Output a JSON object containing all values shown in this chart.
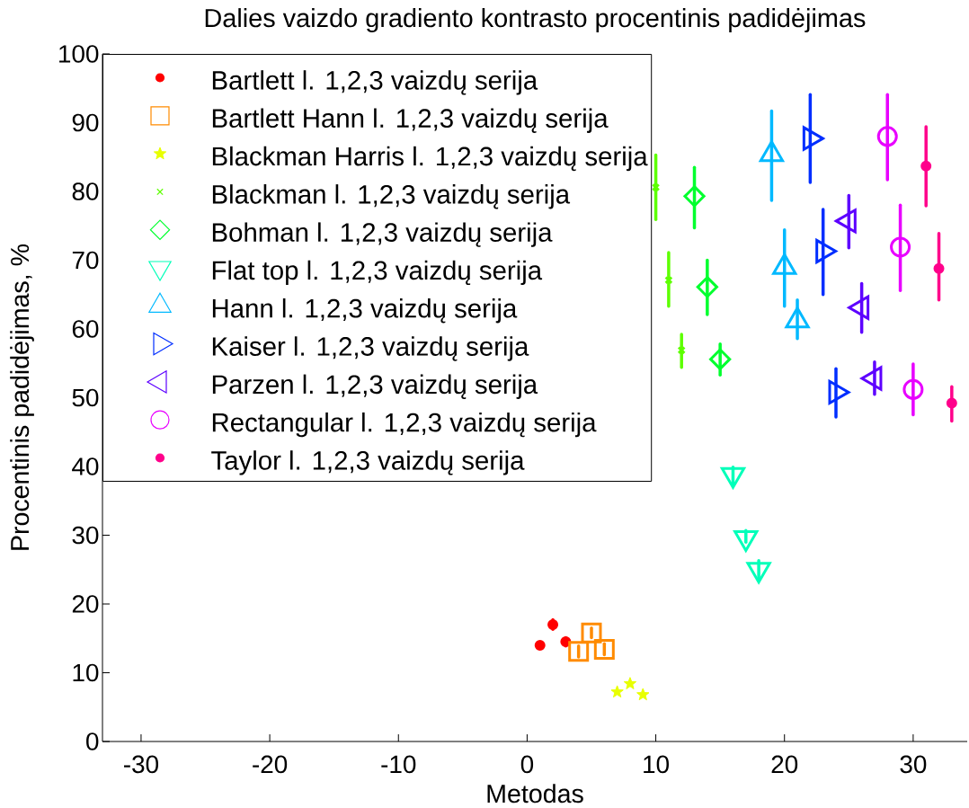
{
  "chart_data": {
    "type": "scatter",
    "title": "Dalies vaizdo gradiento kontrasto procentinis padidėjimas",
    "xlabel": "Metodas",
    "ylabel": "Procentinis padidėjimas, %",
    "xlim": [
      -33,
      34.2
    ],
    "ylim": [
      0,
      100
    ],
    "xticks": [
      -30,
      -20,
      -10,
      0,
      10,
      20,
      30
    ],
    "yticks": [
      0,
      10,
      20,
      30,
      40,
      50,
      60,
      70,
      80,
      90,
      100
    ],
    "legend": "top left",
    "series": [
      {
        "name": "Bartlett l. 1,2,3 vaizdų serija",
        "color": "#ff0000",
        "marker": "dot",
        "x": [
          1,
          2,
          3
        ],
        "values": [
          14.0,
          17.0,
          14.5
        ],
        "errors": [
          null,
          [
            16.3,
            17.7
          ],
          [
            13.9,
            15.1
          ]
        ]
      },
      {
        "name": "Bartlett Hann l. 1,2,3 vaizdų serija",
        "color": "#ff8b00",
        "marker": "square",
        "x": [
          4,
          5,
          6
        ],
        "values": [
          13.1,
          15.8,
          13.4
        ],
        "errors": [
          [
            12.3,
            13.9
          ],
          [
            15.1,
            16.5
          ],
          [
            12.6,
            14.2
          ]
        ]
      },
      {
        "name": "Blackman Harris l. 1,2,3 vaizdų serija",
        "color": "#e8ff00",
        "marker": "star",
        "x": [
          7,
          8,
          9
        ],
        "values": [
          7.2,
          8.4,
          6.8
        ]
      },
      {
        "name": "Blackman l. 1,2,3 vaizdų serija",
        "color": "#5dff00",
        "marker": "cross",
        "x": [
          10,
          11,
          12
        ],
        "values": [
          80.6,
          67.1,
          56.9
        ],
        "errors": [
          [
            75.9,
            85.3
          ],
          [
            63.3,
            71.1
          ],
          [
            54.4,
            59.2
          ]
        ]
      },
      {
        "name": "Bohman l. 1,2,3 vaizdų serija",
        "color": "#00ff2e",
        "marker": "diamond",
        "x": [
          13,
          14,
          15
        ],
        "values": [
          79.3,
          66.1,
          55.6
        ],
        "errors": [
          [
            74.7,
            83.5
          ],
          [
            62.1,
            70.0
          ],
          [
            53.3,
            57.8
          ]
        ]
      },
      {
        "name": "Flat top l. 1,2,3 vaizdų serija",
        "color": "#00ffb9",
        "marker": "triangle-down",
        "x": [
          16,
          17,
          18
        ],
        "values": [
          38.8,
          29.6,
          25.0
        ],
        "errors": [
          [
            37.5,
            39.9
          ],
          [
            29.0,
            30.7
          ],
          [
            23.7,
            26.3
          ]
        ]
      },
      {
        "name": "Hann l. 1,2,3 vaizdų serija",
        "color": "#00b9ff",
        "marker": "triangle",
        "x": [
          19,
          20,
          21
        ],
        "values": [
          85.4,
          69.0,
          61.2
        ],
        "errors": [
          [
            78.7,
            91.7
          ],
          [
            63.3,
            74.4
          ],
          [
            58.6,
            64.2
          ]
        ]
      },
      {
        "name": "Kaiser l. 1,2,3 vaizdų serija",
        "color": "#002eff",
        "marker": "triangle-right",
        "x": [
          22,
          23,
          24
        ],
        "values": [
          87.7,
          71.3,
          50.8
        ],
        "errors": [
          [
            81.3,
            94.1
          ],
          [
            65.0,
            77.4
          ],
          [
            47.2,
            54.2
          ]
        ]
      },
      {
        "name": "Parzen l. 1,2,3 vaizdų serija",
        "color": "#5d00ff",
        "marker": "triangle-left",
        "x": [
          25,
          26,
          27
        ],
        "values": [
          75.7,
          63.1,
          52.8
        ],
        "errors": [
          [
            71.8,
            79.4
          ],
          [
            59.5,
            66.6
          ],
          [
            50.5,
            55.2
          ]
        ]
      },
      {
        "name": "Rectangular l. 1,2,3 vaizdų serija",
        "color": "#e800ff",
        "marker": "circle",
        "x": [
          28,
          29,
          30
        ],
        "values": [
          88.0,
          71.9,
          51.2
        ],
        "errors": [
          [
            81.7,
            94.1
          ],
          [
            65.6,
            78.0
          ],
          [
            47.5,
            54.9
          ]
        ]
      },
      {
        "name": "Taylor l. 1,2,3 vaizdų serija",
        "color": "#ff008b",
        "marker": "dot",
        "x": [
          31,
          32,
          33
        ],
        "values": [
          83.7,
          68.8,
          49.2
        ],
        "errors": [
          [
            77.9,
            89.4
          ],
          [
            64.2,
            73.9
          ],
          [
            46.6,
            51.6
          ]
        ]
      }
    ]
  }
}
